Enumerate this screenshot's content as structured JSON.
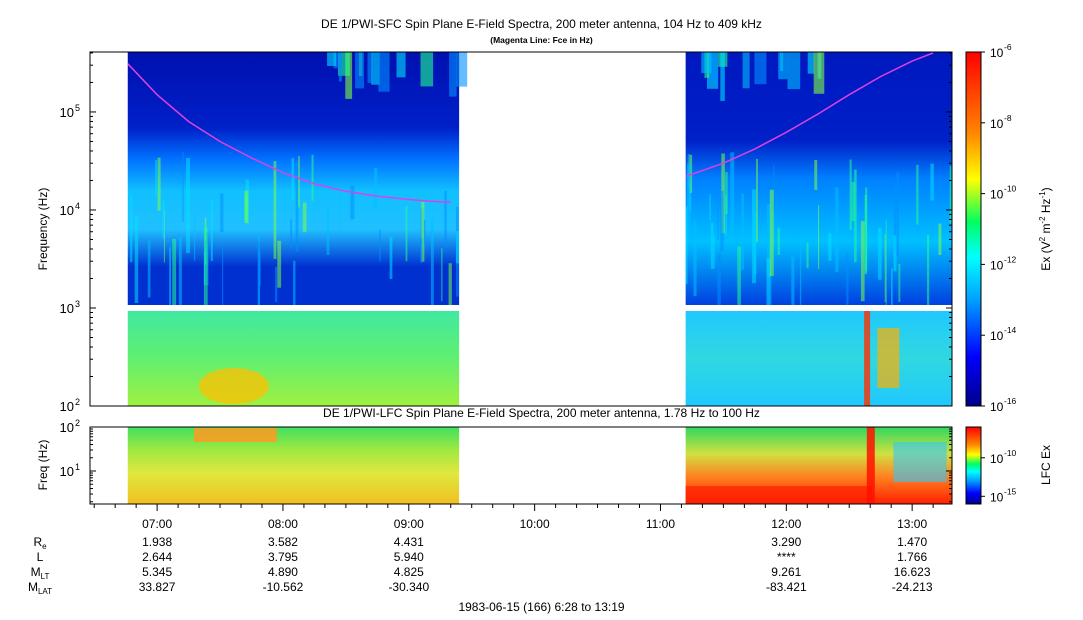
{
  "chart_data": [
    {
      "type": "heatmap",
      "title": "DE 1/PWI-SFC  Spin Plane E-Field Spectra, 200 meter antenna, 104 Hz to 409 kHz",
      "subtitle": "(Magenta Line: Fce in Hz)",
      "ylabel": "Frequency (Hz)",
      "yscale": "log",
      "ylim": [
        100,
        409000
      ],
      "yticks": [
        {
          "value": 100,
          "label": "10",
          "exp": "2"
        },
        {
          "value": 1000,
          "label": "10",
          "exp": "3"
        },
        {
          "value": 10000,
          "label": "10",
          "exp": "4"
        },
        {
          "value": 100000,
          "label": "10",
          "exp": "5"
        }
      ],
      "data_gaps": [
        {
          "start": "09:24",
          "end": "11:12"
        }
      ],
      "data_coverage": [
        [
          "06:46",
          "09:24"
        ],
        [
          "11:12",
          "13:19"
        ]
      ],
      "fce_line": {
        "name": "Fce",
        "color": "#e040e0",
        "segments": [
          {
            "times": [
              "06:46",
              "07:00",
              "07:15",
              "07:30",
              "07:45",
              "08:00",
              "08:15",
              "08:30",
              "08:45",
              "09:00",
              "09:10",
              "09:20"
            ],
            "values": [
              310000,
              150000,
              80000,
              50000,
              34000,
              24000,
              18500,
              15500,
              13800,
              12800,
              12300,
              12000
            ]
          },
          {
            "times": [
              "11:12",
              "11:30",
              "11:45",
              "12:00",
              "12:15",
              "12:30",
              "12:45",
              "13:00",
              "13:10"
            ],
            "values": [
              22000,
              30000,
              42000,
              62000,
              95000,
              150000,
              230000,
              330000,
              400000
            ]
          }
        ]
      },
      "colorbar": {
        "label": "Ex (V² m⁻² Hz⁻¹)",
        "label_base": "Ex (V",
        "label_exp1": "2",
        "label_mid": " m",
        "label_exp2": "-2",
        "label_mid2": " Hz",
        "label_exp3": "-1",
        "label_end": ")",
        "scale": "log",
        "range": [
          1e-16,
          1e-06
        ],
        "ticks": [
          {
            "value": 1e-06,
            "label": "10",
            "exp": "-6"
          },
          {
            "value": 1e-08,
            "label": "10",
            "exp": "-8"
          },
          {
            "value": 1e-10,
            "label": "10",
            "exp": "-10"
          },
          {
            "value": 1e-12,
            "label": "10",
            "exp": "-12"
          },
          {
            "value": 1e-14,
            "label": "10",
            "exp": "-14"
          },
          {
            "value": 1e-16,
            "label": "10",
            "exp": "-16"
          }
        ]
      }
    },
    {
      "type": "heatmap",
      "title": "DE 1/PWI-LFC  Spin Plane E-Field Spectra, 200 meter antenna, 1.78 Hz to 100 Hz",
      "ylabel": "Freq (Hz)",
      "yscale": "log",
      "ylim": [
        1.78,
        100
      ],
      "yticks": [
        {
          "value": 10,
          "label": "10",
          "exp": "1"
        },
        {
          "value": 100,
          "label": "10",
          "exp": "2"
        }
      ],
      "colorbar": {
        "label": "LFC Ex",
        "scale": "log",
        "range": [
          1e-16,
          1e-06
        ],
        "ticks": [
          {
            "value": 1e-10,
            "label": "10",
            "exp": "-10"
          },
          {
            "value": 1e-15,
            "label": "10",
            "exp": "-15"
          }
        ]
      }
    }
  ],
  "x_axis": {
    "start": "06:28",
    "end": "13:19",
    "ticks": [
      "07:00",
      "08:00",
      "09:00",
      "10:00",
      "11:00",
      "12:00",
      "13:00"
    ]
  },
  "ephemeris": {
    "rows": [
      {
        "label": "R",
        "sub": "e",
        "values": [
          "1.938",
          "3.582",
          "4.431",
          "",
          "",
          "3.290",
          "1.470"
        ]
      },
      {
        "label": "L",
        "sub": "",
        "values": [
          "2.644",
          "3.795",
          "5.940",
          "",
          "",
          "****",
          "1.766"
        ]
      },
      {
        "label": "M",
        "sub": "LT",
        "values": [
          "5.345",
          "4.890",
          "4.825",
          "",
          "",
          "9.261",
          "16.623"
        ]
      },
      {
        "label": "M",
        "sub": "LAT",
        "values": [
          "33.827",
          "-10.562",
          "-30.340",
          "",
          "",
          "-83.421",
          "-24.213"
        ]
      }
    ]
  },
  "footer": "1983-06-15 (166) 6:28 to 13:19"
}
